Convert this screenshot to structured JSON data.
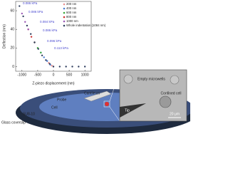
{
  "chart_data": {
    "type": "scatter",
    "x_label": "Z-piezo displacement (nm)",
    "y_label": "Deflection (nm)",
    "xlim": [
      -1200,
      1200
    ],
    "xticks": [
      -1000,
      -500,
      0,
      500,
      1000
    ],
    "ylim": [
      -5,
      70
    ],
    "yticks": [
      0,
      20,
      40,
      60
    ],
    "legend": "upper right",
    "annotations": [
      "0.086 kPa",
      "0.086 kPa",
      "0.084 kPa",
      "0.086 kPa",
      "0.096 kPa",
      "0.113 kPa"
    ],
    "series": [
      {
        "name": "200 nm",
        "color": "#e89090",
        "x": [
          -200,
          -150,
          -100,
          -50,
          0
        ],
        "values": [
          6,
          4,
          2,
          1,
          0
        ]
      },
      {
        "name": "400 nm",
        "color": "#4a7fd4",
        "x": [
          -400,
          -300,
          -200,
          -100
        ],
        "values": [
          15,
          10,
          6,
          2
        ]
      },
      {
        "name": "600 nm",
        "color": "#3aa83a",
        "x": [
          -600,
          -500,
          -400
        ],
        "values": [
          26,
          20,
          15
        ]
      },
      {
        "name": "800 nm",
        "color": "#d03030",
        "x": [
          -800,
          -700,
          -600
        ],
        "values": [
          40,
          32,
          26
        ]
      },
      {
        "name": "1000 nm",
        "color": "#9b59b6",
        "x": [
          -1000,
          -900,
          -800
        ],
        "values": [
          57,
          48,
          40
        ]
      },
      {
        "name": "Whole indentation (1084 nm)",
        "color": "#2f3e5e",
        "x": [
          -1080,
          -960,
          -840,
          -720,
          -600,
          -480,
          -360,
          -240,
          -120,
          0,
          200,
          400,
          600,
          800,
          1000
        ],
        "values": [
          65,
          54,
          44,
          35,
          26,
          19,
          12,
          7,
          3,
          0,
          0,
          0,
          0,
          0,
          0
        ]
      }
    ]
  },
  "diagram": {
    "glass": "Glass coverslip",
    "su8": "SU8-10",
    "cell": "Cell",
    "probe": "Probe",
    "cantilever": "Cantilever",
    "empty": "Empty microwells",
    "confined": "Confined cell",
    "tip": "Tip",
    "scale": "20 μm"
  }
}
